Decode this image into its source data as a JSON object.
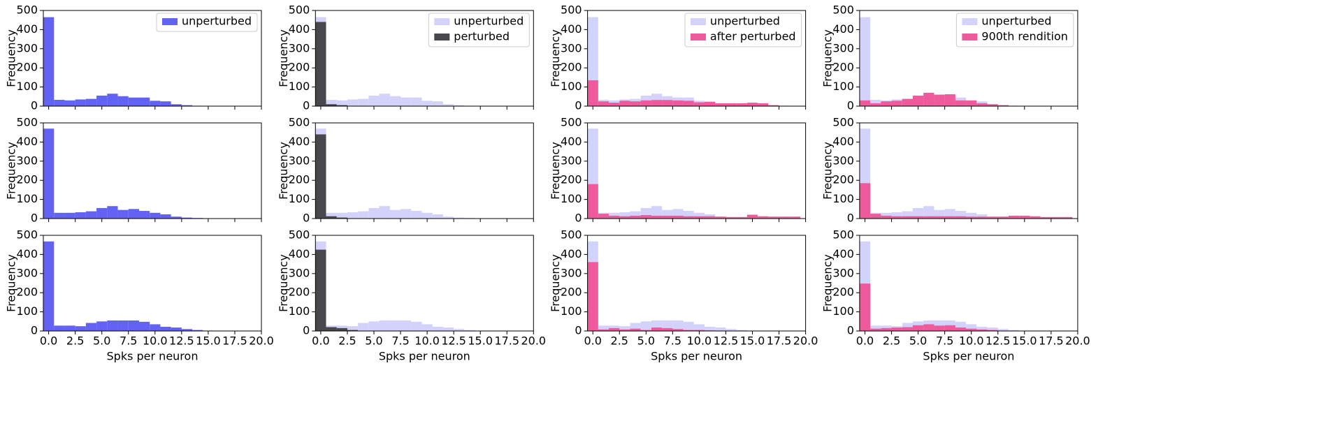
{
  "chart_data": [
    {
      "type": "histogram",
      "ylabel": "Frequency",
      "legend": "upper right",
      "bins": [
        -0.5,
        0.5,
        1.5,
        2.5,
        3.5,
        4.5,
        5.5,
        6.5,
        7.5,
        8.5,
        9.5,
        10.5,
        11.5,
        12.5,
        13.5,
        14.5,
        15.5,
        16.5,
        17.5,
        18.5,
        19.5
      ],
      "xlim": [
        -0.5,
        20
      ],
      "ylim": [
        0,
        500
      ],
      "yticks": [
        0,
        100,
        200,
        300,
        400,
        500
      ],
      "xticks": [
        0,
        2.5,
        5,
        7.5,
        10,
        12.5,
        15,
        17.5,
        20
      ],
      "series": [
        {
          "name": "unperturbed",
          "color": "#6262f5",
          "values": [
            465,
            33,
            30,
            35,
            38,
            55,
            65,
            52,
            45,
            45,
            28,
            25,
            10,
            5,
            2,
            1,
            0,
            0,
            0,
            0
          ]
        }
      ]
    },
    {
      "type": "histogram",
      "ylabel": "Frequency",
      "legend": "upper right",
      "bins": [
        -0.5,
        0.5,
        1.5,
        2.5,
        3.5,
        4.5,
        5.5,
        6.5,
        7.5,
        8.5,
        9.5,
        10.5,
        11.5,
        12.5,
        13.5,
        14.5,
        15.5,
        16.5,
        17.5,
        18.5,
        19.5
      ],
      "xlim": [
        -0.5,
        20
      ],
      "ylim": [
        0,
        500
      ],
      "yticks": [
        0,
        100,
        200,
        300,
        400,
        500
      ],
      "xticks": [
        0,
        2.5,
        5,
        7.5,
        10,
        12.5,
        15,
        17.5,
        20
      ],
      "series": [
        {
          "name": "unperturbed",
          "color": "#d2d2fa",
          "values": [
            465,
            33,
            30,
            35,
            38,
            55,
            65,
            52,
            45,
            45,
            28,
            25,
            10,
            5,
            2,
            1,
            0,
            0,
            0,
            0
          ]
        },
        {
          "name": "perturbed",
          "color": "#47474d",
          "values": [
            440,
            10,
            5,
            0,
            0,
            0,
            0,
            0,
            0,
            0,
            0,
            0,
            0,
            0,
            0,
            0,
            0,
            0,
            0,
            0
          ]
        }
      ]
    },
    {
      "type": "histogram",
      "ylabel": "Frequency",
      "legend": "upper right",
      "bins": [
        -0.5,
        0.5,
        1.5,
        2.5,
        3.5,
        4.5,
        5.5,
        6.5,
        7.5,
        8.5,
        9.5,
        10.5,
        11.5,
        12.5,
        13.5,
        14.5,
        15.5,
        16.5,
        17.5,
        18.5,
        19.5
      ],
      "xlim": [
        -0.5,
        20
      ],
      "ylim": [
        0,
        500
      ],
      "yticks": [
        0,
        100,
        200,
        300,
        400,
        500
      ],
      "xticks": [
        0,
        2.5,
        5,
        7.5,
        10,
        12.5,
        15,
        17.5,
        20
      ],
      "series": [
        {
          "name": "unperturbed",
          "color": "#d2d2fa",
          "values": [
            465,
            33,
            30,
            35,
            38,
            55,
            65,
            52,
            45,
            45,
            28,
            25,
            10,
            5,
            2,
            1,
            0,
            0,
            0,
            0
          ]
        },
        {
          "name": "after perturbed",
          "color": "#ee5a9b",
          "values": [
            135,
            25,
            18,
            28,
            25,
            30,
            32,
            32,
            30,
            28,
            20,
            22,
            15,
            15,
            15,
            18,
            15,
            5,
            2,
            0
          ]
        }
      ]
    },
    {
      "type": "histogram",
      "ylabel": "Frequency",
      "legend": "upper right",
      "bins": [
        -0.5,
        0.5,
        1.5,
        2.5,
        3.5,
        4.5,
        5.5,
        6.5,
        7.5,
        8.5,
        9.5,
        10.5,
        11.5,
        12.5,
        13.5,
        14.5,
        15.5,
        16.5,
        17.5,
        18.5,
        19.5
      ],
      "xlim": [
        -0.5,
        20
      ],
      "ylim": [
        0,
        500
      ],
      "yticks": [
        0,
        100,
        200,
        300,
        400,
        500
      ],
      "xticks": [
        0,
        2.5,
        5,
        7.5,
        10,
        12.5,
        15,
        17.5,
        20
      ],
      "series": [
        {
          "name": "unperturbed",
          "color": "#d2d2fa",
          "values": [
            465,
            33,
            30,
            35,
            38,
            55,
            65,
            52,
            45,
            45,
            28,
            25,
            10,
            5,
            2,
            1,
            0,
            0,
            0,
            0
          ]
        },
        {
          "name": "900th rendition",
          "color": "#ee5a9b",
          "values": [
            30,
            15,
            25,
            28,
            38,
            55,
            70,
            60,
            62,
            30,
            30,
            15,
            10,
            5,
            2,
            0,
            0,
            0,
            0,
            0
          ]
        }
      ]
    },
    {
      "type": "histogram",
      "ylabel": "Frequency",
      "bins": [
        -0.5,
        0.5,
        1.5,
        2.5,
        3.5,
        4.5,
        5.5,
        6.5,
        7.5,
        8.5,
        9.5,
        10.5,
        11.5,
        12.5,
        13.5,
        14.5,
        15.5,
        16.5,
        17.5,
        18.5,
        19.5
      ],
      "xlim": [
        -0.5,
        20
      ],
      "ylim": [
        0,
        500
      ],
      "yticks": [
        0,
        100,
        200,
        300,
        400,
        500
      ],
      "xticks": [
        0,
        2.5,
        5,
        7.5,
        10,
        12.5,
        15,
        17.5,
        20
      ],
      "series": [
        {
          "color": "#6262f5",
          "values": [
            470,
            30,
            30,
            33,
            38,
            55,
            65,
            45,
            50,
            40,
            30,
            22,
            10,
            5,
            3,
            1,
            0,
            0,
            0,
            0
          ]
        }
      ]
    },
    {
      "type": "histogram",
      "ylabel": "Frequency",
      "bins": [
        -0.5,
        0.5,
        1.5,
        2.5,
        3.5,
        4.5,
        5.5,
        6.5,
        7.5,
        8.5,
        9.5,
        10.5,
        11.5,
        12.5,
        13.5,
        14.5,
        15.5,
        16.5,
        17.5,
        18.5,
        19.5
      ],
      "xlim": [
        -0.5,
        20
      ],
      "ylim": [
        0,
        500
      ],
      "yticks": [
        0,
        100,
        200,
        300,
        400,
        500
      ],
      "xticks": [
        0,
        2.5,
        5,
        7.5,
        10,
        12.5,
        15,
        17.5,
        20
      ],
      "series": [
        {
          "color": "#d2d2fa",
          "values": [
            470,
            30,
            30,
            33,
            38,
            55,
            65,
            45,
            50,
            40,
            30,
            22,
            10,
            5,
            3,
            1,
            0,
            0,
            0,
            0
          ]
        },
        {
          "color": "#47474d",
          "values": [
            440,
            12,
            5,
            0,
            0,
            0,
            0,
            0,
            0,
            0,
            0,
            0,
            0,
            0,
            0,
            0,
            0,
            0,
            0,
            0
          ]
        }
      ]
    },
    {
      "type": "histogram",
      "ylabel": "Frequency",
      "bins": [
        -0.5,
        0.5,
        1.5,
        2.5,
        3.5,
        4.5,
        5.5,
        6.5,
        7.5,
        8.5,
        9.5,
        10.5,
        11.5,
        12.5,
        13.5,
        14.5,
        15.5,
        16.5,
        17.5,
        18.5,
        19.5
      ],
      "xlim": [
        -0.5,
        20
      ],
      "ylim": [
        0,
        500
      ],
      "yticks": [
        0,
        100,
        200,
        300,
        400,
        500
      ],
      "xticks": [
        0,
        2.5,
        5,
        7.5,
        10,
        12.5,
        15,
        17.5,
        20
      ],
      "series": [
        {
          "color": "#d2d2fa",
          "values": [
            470,
            30,
            30,
            33,
            38,
            55,
            65,
            45,
            50,
            40,
            30,
            22,
            10,
            5,
            3,
            1,
            0,
            0,
            0,
            0
          ]
        },
        {
          "color": "#ee5a9b",
          "values": [
            180,
            25,
            15,
            12,
            15,
            18,
            15,
            15,
            15,
            12,
            12,
            12,
            10,
            8,
            8,
            20,
            12,
            10,
            10,
            10
          ]
        }
      ]
    },
    {
      "type": "histogram",
      "ylabel": "Frequency",
      "bins": [
        -0.5,
        0.5,
        1.5,
        2.5,
        3.5,
        4.5,
        5.5,
        6.5,
        7.5,
        8.5,
        9.5,
        10.5,
        11.5,
        12.5,
        13.5,
        14.5,
        15.5,
        16.5,
        17.5,
        18.5,
        19.5
      ],
      "xlim": [
        -0.5,
        20
      ],
      "ylim": [
        0,
        500
      ],
      "yticks": [
        0,
        100,
        200,
        300,
        400,
        500
      ],
      "xticks": [
        0,
        2.5,
        5,
        7.5,
        10,
        12.5,
        15,
        17.5,
        20
      ],
      "series": [
        {
          "color": "#d2d2fa",
          "values": [
            470,
            30,
            30,
            33,
            38,
            55,
            65,
            45,
            50,
            40,
            30,
            22,
            10,
            5,
            3,
            1,
            0,
            0,
            0,
            0
          ]
        },
        {
          "color": "#ee5a9b",
          "values": [
            185,
            25,
            15,
            12,
            12,
            12,
            12,
            12,
            12,
            12,
            10,
            10,
            10,
            10,
            15,
            15,
            12,
            8,
            8,
            8
          ]
        }
      ]
    },
    {
      "type": "histogram",
      "ylabel": "Frequency",
      "xlabel": "Spks per neuron",
      "bins": [
        -0.5,
        0.5,
        1.5,
        2.5,
        3.5,
        4.5,
        5.5,
        6.5,
        7.5,
        8.5,
        9.5,
        10.5,
        11.5,
        12.5,
        13.5,
        14.5,
        15.5,
        16.5,
        17.5,
        18.5,
        19.5
      ],
      "xlim": [
        -0.5,
        20
      ],
      "ylim": [
        0,
        500
      ],
      "yticks": [
        0,
        100,
        200,
        300,
        400,
        500
      ],
      "xticks": [
        {
          "value": 0,
          "label": "0.0"
        },
        {
          "value": 2.5,
          "label": "2.5"
        },
        {
          "value": 5,
          "label": "5.0"
        },
        {
          "value": 7.5,
          "label": "7.5"
        },
        {
          "value": 10,
          "label": "10.0"
        },
        {
          "value": 12.5,
          "label": "12.5"
        },
        {
          "value": 15,
          "label": "15.0"
        },
        {
          "value": 17.5,
          "label": "17.5"
        },
        {
          "value": 20,
          "label": "20.0"
        }
      ],
      "series": [
        {
          "color": "#6262f5",
          "values": [
            468,
            28,
            28,
            25,
            42,
            50,
            55,
            55,
            55,
            48,
            35,
            22,
            18,
            10,
            5,
            2,
            0,
            0,
            0,
            0
          ]
        }
      ]
    },
    {
      "type": "histogram",
      "ylabel": "Frequency",
      "xlabel": "Spks per neuron",
      "bins": [
        -0.5,
        0.5,
        1.5,
        2.5,
        3.5,
        4.5,
        5.5,
        6.5,
        7.5,
        8.5,
        9.5,
        10.5,
        11.5,
        12.5,
        13.5,
        14.5,
        15.5,
        16.5,
        17.5,
        18.5,
        19.5
      ],
      "xlim": [
        -0.5,
        20
      ],
      "ylim": [
        0,
        500
      ],
      "yticks": [
        0,
        100,
        200,
        300,
        400,
        500
      ],
      "xticks": [
        {
          "value": 0,
          "label": "0.0"
        },
        {
          "value": 2.5,
          "label": "2.5"
        },
        {
          "value": 5,
          "label": "5.0"
        },
        {
          "value": 7.5,
          "label": "7.5"
        },
        {
          "value": 10,
          "label": "10.0"
        },
        {
          "value": 12.5,
          "label": "12.5"
        },
        {
          "value": 15,
          "label": "15.0"
        },
        {
          "value": 17.5,
          "label": "17.5"
        },
        {
          "value": 20,
          "label": "20.0"
        }
      ],
      "series": [
        {
          "color": "#d2d2fa",
          "values": [
            468,
            28,
            28,
            25,
            42,
            50,
            55,
            55,
            55,
            48,
            35,
            22,
            18,
            10,
            5,
            2,
            0,
            0,
            0,
            0
          ]
        },
        {
          "color": "#47474d",
          "values": [
            425,
            20,
            15,
            5,
            0,
            0,
            0,
            0,
            0,
            0,
            0,
            0,
            0,
            0,
            0,
            0,
            0,
            0,
            0,
            0
          ]
        }
      ]
    },
    {
      "type": "histogram",
      "ylabel": "Frequency",
      "xlabel": "Spks per neuron",
      "bins": [
        -0.5,
        0.5,
        1.5,
        2.5,
        3.5,
        4.5,
        5.5,
        6.5,
        7.5,
        8.5,
        9.5,
        10.5,
        11.5,
        12.5,
        13.5,
        14.5,
        15.5,
        16.5,
        17.5,
        18.5,
        19.5
      ],
      "xlim": [
        -0.5,
        20
      ],
      "ylim": [
        0,
        500
      ],
      "yticks": [
        0,
        100,
        200,
        300,
        400,
        500
      ],
      "xticks": [
        {
          "value": 0,
          "label": "0.0"
        },
        {
          "value": 2.5,
          "label": "2.5"
        },
        {
          "value": 5,
          "label": "5.0"
        },
        {
          "value": 7.5,
          "label": "7.5"
        },
        {
          "value": 10,
          "label": "10.0"
        },
        {
          "value": 12.5,
          "label": "12.5"
        },
        {
          "value": 15,
          "label": "15.0"
        },
        {
          "value": 17.5,
          "label": "17.5"
        },
        {
          "value": 20,
          "label": "20.0"
        }
      ],
      "series": [
        {
          "color": "#d2d2fa",
          "values": [
            468,
            28,
            28,
            25,
            42,
            50,
            55,
            55,
            55,
            48,
            35,
            22,
            18,
            10,
            5,
            2,
            0,
            0,
            0,
            0
          ]
        },
        {
          "color": "#ee5a9b",
          "values": [
            360,
            8,
            15,
            8,
            12,
            5,
            18,
            15,
            10,
            5,
            5,
            3,
            2,
            0,
            0,
            0,
            0,
            0,
            0,
            0
          ]
        }
      ]
    },
    {
      "type": "histogram",
      "ylabel": "Frequency",
      "xlabel": "Spks per neuron",
      "bins": [
        -0.5,
        0.5,
        1.5,
        2.5,
        3.5,
        4.5,
        5.5,
        6.5,
        7.5,
        8.5,
        9.5,
        10.5,
        11.5,
        12.5,
        13.5,
        14.5,
        15.5,
        16.5,
        17.5,
        18.5,
        19.5
      ],
      "xlim": [
        -0.5,
        20
      ],
      "ylim": [
        0,
        500
      ],
      "yticks": [
        0,
        100,
        200,
        300,
        400,
        500
      ],
      "xticks": [
        {
          "value": 0,
          "label": "0.0"
        },
        {
          "value": 2.5,
          "label": "2.5"
        },
        {
          "value": 5,
          "label": "5.0"
        },
        {
          "value": 7.5,
          "label": "7.5"
        },
        {
          "value": 10,
          "label": "10.0"
        },
        {
          "value": 12.5,
          "label": "12.5"
        },
        {
          "value": 15,
          "label": "15.0"
        },
        {
          "value": 17.5,
          "label": "17.5"
        },
        {
          "value": 20,
          "label": "20.0"
        }
      ],
      "series": [
        {
          "color": "#d2d2fa",
          "values": [
            468,
            28,
            28,
            25,
            42,
            50,
            55,
            55,
            55,
            48,
            35,
            22,
            18,
            10,
            5,
            2,
            0,
            0,
            0,
            0
          ]
        },
        {
          "color": "#ee5a9b",
          "values": [
            248,
            12,
            15,
            18,
            20,
            30,
            35,
            28,
            30,
            18,
            12,
            8,
            5,
            2,
            0,
            0,
            0,
            0,
            0,
            0
          ]
        }
      ]
    }
  ]
}
